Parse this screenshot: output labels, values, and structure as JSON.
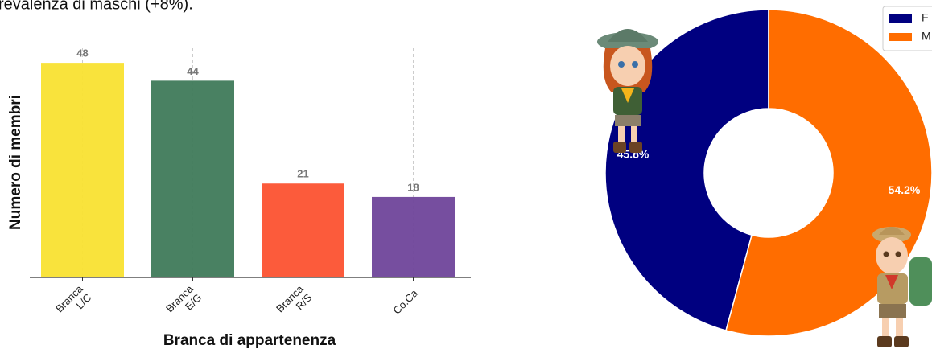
{
  "header": {
    "text": "revalenza di maschi (+8%)."
  },
  "chart_data": [
    {
      "type": "bar",
      "categories": [
        "Branca L/C",
        "Branca E/G",
        "Branca R/S",
        "Co.Ca"
      ],
      "values": [
        48,
        44,
        21,
        18
      ],
      "colors": [
        "#f9e231",
        "#3f7a5a",
        "#fc5230",
        "#6f449a"
      ],
      "ylim": [
        0,
        50
      ],
      "xlabel": "Branca di appartenenza",
      "ylabel": "Numero di membri",
      "grid": true
    },
    {
      "type": "pie",
      "categories": [
        "F",
        "M"
      ],
      "values": [
        45.8,
        54.2
      ],
      "value_labels": [
        "45.8%",
        "54.2%"
      ],
      "colors": [
        "#000080",
        "#ff6d00"
      ],
      "donut": true,
      "legend": "upper right"
    }
  ]
}
